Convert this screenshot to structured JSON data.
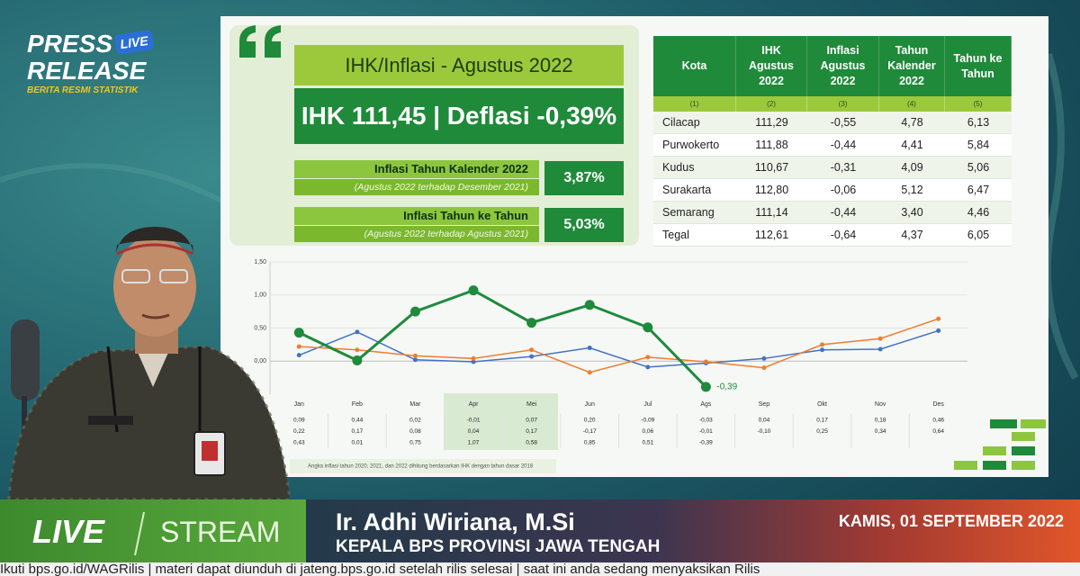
{
  "overlay": {
    "press": "PRESS",
    "release": "RELEASE",
    "live_badge": "LIVE",
    "tagline": "BERITA RESMI STATISTIK"
  },
  "summary": {
    "title": "IHK/Inflasi - Agustus 2022",
    "headline": "IHK 111,45 | Deflasi -0,39%",
    "items": [
      {
        "label": "Inflasi Tahun Kalender 2022",
        "sub": "(Agustus 2022 terhadap Desember 2021)",
        "value": "3,87%"
      },
      {
        "label": "Inflasi Tahun ke Tahun",
        "sub": "(Agustus 2022 terhadap Agustus 2021)",
        "value": "5,03%"
      }
    ]
  },
  "table": {
    "headers": [
      "Kota",
      "IHK Agustus 2022",
      "Inflasi Agustus 2022",
      "Tahun Kalender 2022",
      "Tahun ke Tahun"
    ],
    "column_numbers": [
      "(1)",
      "(2)",
      "(3)",
      "(4)",
      "(5)"
    ],
    "rows": [
      [
        "Cilacap",
        "111,29",
        "-0,55",
        "4,78",
        "6,13"
      ],
      [
        "Purwokerto",
        "111,88",
        "-0,44",
        "4,41",
        "5,84"
      ],
      [
        "Kudus",
        "110,67",
        "-0,31",
        "4,09",
        "5,06"
      ],
      [
        "Surakarta",
        "112,80",
        "-0,06",
        "5,12",
        "6,47"
      ],
      [
        "Semarang",
        "111,14",
        "-0,44",
        "3,40",
        "4,46"
      ],
      [
        "Tegal",
        "112,61",
        "-0,64",
        "4,37",
        "6,05"
      ]
    ]
  },
  "chart_data": {
    "type": "line",
    "categories": [
      "Jan",
      "Feb",
      "Mar",
      "Apr",
      "Mei",
      "Jun",
      "Jul",
      "Ags",
      "Sep",
      "Okt",
      "Nov",
      "Des"
    ],
    "series": [
      {
        "color": "#4472c4",
        "values": [
          0.09,
          0.44,
          0.02,
          -0.01,
          0.07,
          0.2,
          -0.09,
          -0.03,
          0.04,
          0.17,
          0.18,
          0.46
        ],
        "value_labels": [
          "0,09",
          "0,44",
          "0,02",
          "-0,01",
          "0,07",
          "0,20",
          "-0,09",
          "-0,03",
          "0,04",
          "0,17",
          "0,18",
          "0,46"
        ]
      },
      {
        "color": "#ed7d31",
        "values": [
          0.22,
          0.17,
          0.08,
          0.04,
          0.17,
          -0.17,
          0.06,
          -0.01,
          -0.1,
          0.25,
          0.34,
          0.64
        ],
        "value_labels": [
          "0,22",
          "0,17",
          "0,08",
          "0,04",
          "0,17",
          "-0,17",
          "0,06",
          "-0,01",
          "-0,10",
          "0,25",
          "0,34",
          "0,64"
        ]
      },
      {
        "color": "#1e8a3c",
        "values": [
          0.43,
          0.01,
          0.75,
          1.07,
          0.58,
          0.85,
          0.51,
          -0.39,
          null,
          null,
          null,
          null
        ],
        "value_labels": [
          "0,43",
          "0,01",
          "0,75",
          "1,07",
          "0,58",
          "0,85",
          "0,51",
          "-0,39",
          null,
          null,
          null,
          null
        ]
      }
    ],
    "ylim": [
      -0.5,
      1.5
    ],
    "yticks": [
      {
        "value": 1.5,
        "label": "1,50"
      },
      {
        "value": 1.0,
        "label": "1,00"
      },
      {
        "value": 0.5,
        "label": "0,50"
      },
      {
        "value": 0,
        "label": "0,00"
      }
    ],
    "grid": true,
    "annotation": "-0,39",
    "note": "Angka inflasi tahun 2020, 2021, dan 2022 dihitung berdasarkan IHK dengan tahun dasar 2018"
  },
  "lower_third": {
    "live": "LIVE",
    "stream": "STREAM",
    "name": "Ir. Adhi Wiriana, M.Si",
    "role": "KEPALA BPS PROVINSI JAWA TENGAH",
    "date": "KAMIS, 01 SEPTEMBER 2022"
  },
  "ticker": "Ikuti bps.go.id/WAGRilis  |  materi dapat diunduh di jateng.bps.go.id setelah rilis selesai  |  saat ini anda sedang menyaksikan Rilis"
}
